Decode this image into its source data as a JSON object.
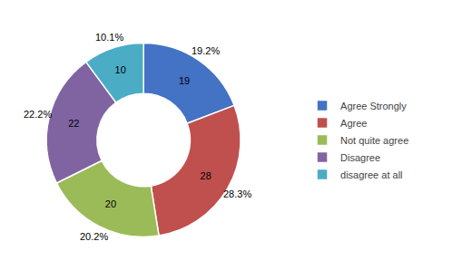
{
  "chart_data": {
    "type": "donut",
    "categories": [
      "Agree Strongly",
      "Agree",
      "Not quite agree",
      "Disagree",
      "disagree at all"
    ],
    "values": [
      19,
      28,
      20,
      22,
      10
    ],
    "data_labels": true,
    "percentages": [
      19.2,
      28.3,
      20.2,
      22.2,
      10.1
    ],
    "percentage_labels": [
      "19.2%",
      "28.3%",
      "20.2%",
      "22.2%",
      "10.1%"
    ],
    "colors": [
      "#4472C4",
      "#C0504D",
      "#9BBB59",
      "#8064A2",
      "#4BACC6"
    ],
    "legend": "right"
  }
}
